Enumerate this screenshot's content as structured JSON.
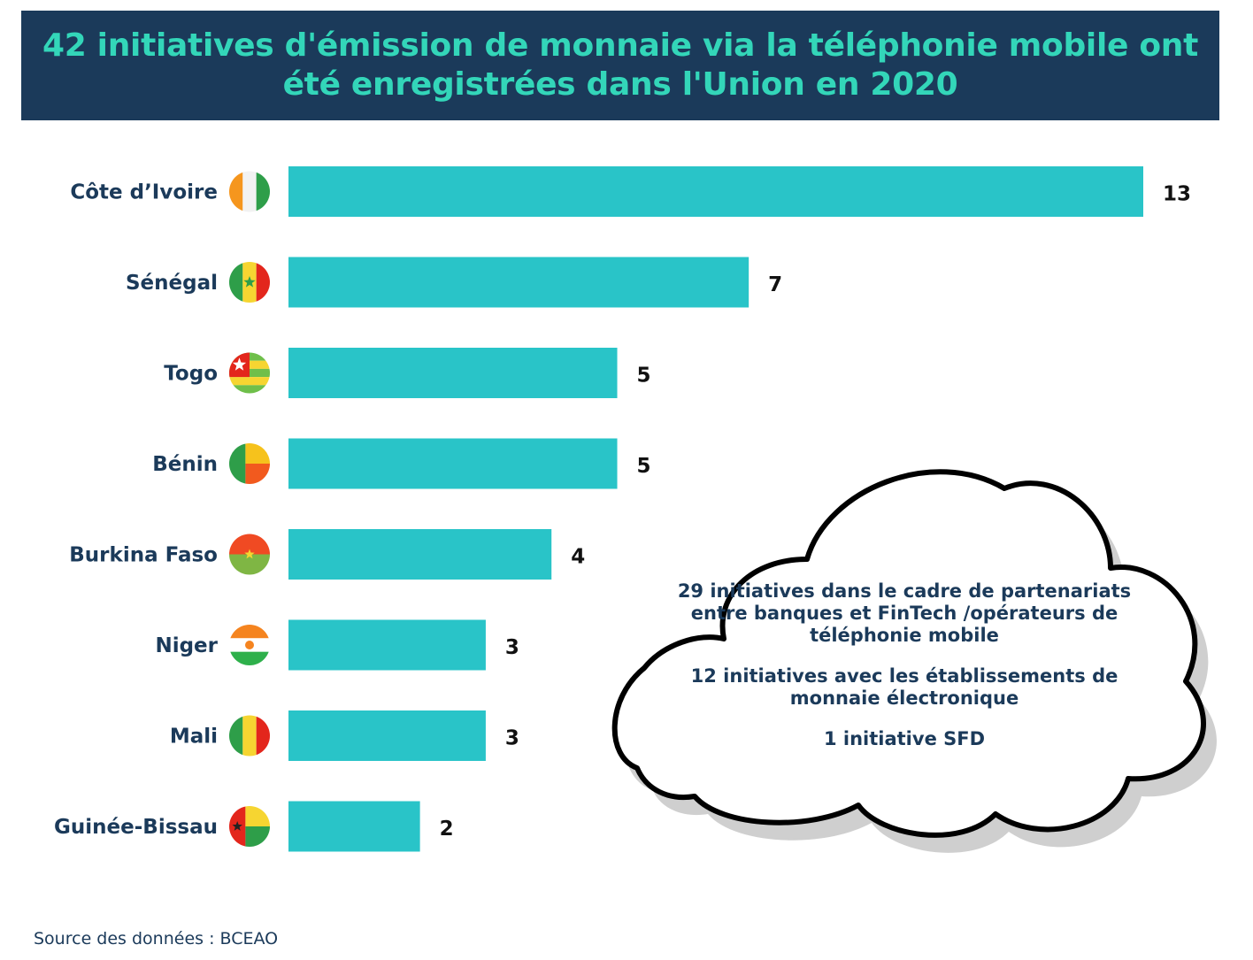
{
  "chart_data": {
    "type": "bar",
    "orientation": "horizontal",
    "title": "42 initiatives d'émission de monnaie via la téléphonie mobile ont été enregistrées dans l'Union en 2020",
    "categories": [
      "Côte d’Ivoire",
      "Sénégal",
      "Togo",
      "Bénin",
      "Burkina Faso",
      "Niger",
      "Mali",
      "Guinée-Bissau"
    ],
    "values": [
      13,
      7,
      5,
      5,
      4,
      3,
      3,
      2
    ],
    "bar_color": "#29c4c8",
    "xlim": [
      0,
      13
    ],
    "grid": false,
    "legend": "none"
  },
  "flags": [
    "cote-divoire-flag-icon",
    "senegal-flag-icon",
    "togo-flag-icon",
    "benin-flag-icon",
    "burkina-faso-flag-icon",
    "niger-flag-icon",
    "mali-flag-icon",
    "guinea-bissau-flag-icon"
  ],
  "callout": {
    "line1": "29 initiatives dans le cadre de partenariats entre banques et FinTech /opérateurs de téléphonie mobile",
    "line2": "12 initiatives avec les établissements de monnaie électronique",
    "line3": "1 initiative SFD"
  },
  "source": "Source des données : BCEAO",
  "colors": {
    "banner": "#1b3a5a",
    "title": "#33d6b9",
    "label": "#1b3a5a"
  }
}
